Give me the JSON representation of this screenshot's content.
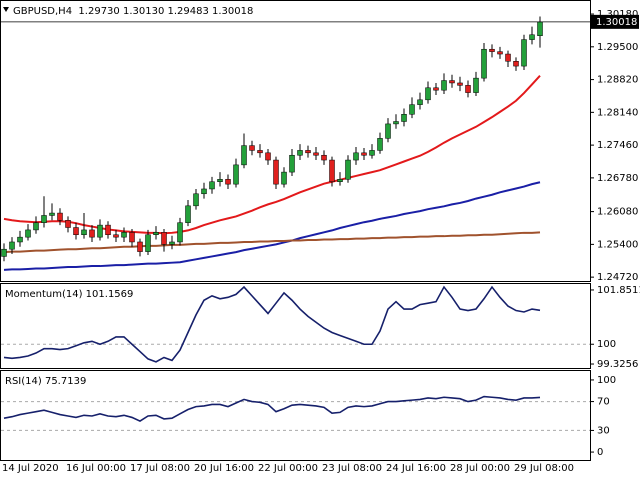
{
  "chart_data": [
    {
      "type": "candlestick",
      "title": "GBPUSD,H4  1.29730 1.30130 1.29483 1.30018",
      "categories": [
        "14 Jul 2020",
        null,
        null,
        null,
        null,
        null,
        null,
        null,
        "16 Jul 00:00",
        null,
        null,
        null,
        null,
        null,
        null,
        null,
        "17 Jul 08:00",
        null,
        null,
        null,
        null,
        null,
        null,
        null,
        "20 Jul 16:00",
        null,
        null,
        null,
        null,
        null,
        null,
        null,
        "22 Jul 00:00",
        null,
        null,
        null,
        null,
        null,
        null,
        null,
        "23 Jul 08:00",
        null,
        null,
        null,
        null,
        null,
        null,
        null,
        "24 Jul 16:00",
        null,
        null,
        null,
        null,
        null,
        null,
        null,
        "28 Jul 00:00",
        null,
        null,
        null,
        null,
        null,
        null,
        null,
        "29 Jul 08:00",
        null,
        null,
        null
      ],
      "open": [
        1.2515,
        1.253,
        1.2545,
        1.2555,
        1.257,
        1.2585,
        1.26,
        1.2605,
        1.259,
        1.2575,
        1.256,
        1.257,
        1.2555,
        1.258,
        1.256,
        1.2555,
        1.2565,
        1.2545,
        1.2525,
        1.256,
        1.2565,
        1.254,
        1.2545,
        1.2585,
        1.262,
        1.2645,
        1.2655,
        1.267,
        1.2675,
        1.2665,
        1.2705,
        1.2745,
        1.2735,
        1.273,
        1.2715,
        1.2665,
        1.269,
        1.2725,
        1.2735,
        1.273,
        1.2725,
        1.2715,
        1.267,
        1.2675,
        1.2715,
        1.273,
        1.2725,
        1.2735,
        1.276,
        1.279,
        1.2795,
        1.281,
        1.283,
        1.284,
        1.2865,
        1.286,
        1.288,
        1.2875,
        1.287,
        1.2855,
        1.2885,
        1.2945,
        1.294,
        1.2935,
        1.292,
        1.291,
        1.2965,
        1.2973
      ],
      "high": [
        1.2542,
        1.2555,
        1.2568,
        1.2582,
        1.2598,
        1.264,
        1.2625,
        1.2615,
        1.2598,
        1.2585,
        1.2605,
        1.258,
        1.2592,
        1.2588,
        1.257,
        1.2575,
        1.2572,
        1.2552,
        1.257,
        1.2578,
        1.2572,
        1.2558,
        1.2595,
        1.2632,
        1.2655,
        1.2668,
        1.268,
        1.269,
        1.2685,
        1.2718,
        1.277,
        1.2755,
        1.2748,
        1.2738,
        1.2722,
        1.27,
        1.2738,
        1.2748,
        1.2745,
        1.2742,
        1.2735,
        1.2722,
        1.269,
        1.2725,
        1.2742,
        1.274,
        1.2748,
        1.2772,
        1.2802,
        1.281,
        1.2822,
        1.2845,
        1.2855,
        1.2878,
        1.2875,
        1.2895,
        1.2892,
        1.2888,
        1.288,
        1.2898,
        1.2958,
        1.2955,
        1.295,
        1.2942,
        1.2928,
        1.2975,
        1.2992,
        1.3013
      ],
      "low": [
        1.2505,
        1.252,
        1.2535,
        1.2548,
        1.2562,
        1.2575,
        1.259,
        1.258,
        1.2565,
        1.255,
        1.2552,
        1.2545,
        1.2548,
        1.2552,
        1.2545,
        1.2545,
        1.2535,
        1.2515,
        1.2518,
        1.255,
        1.2525,
        1.253,
        1.2538,
        1.2578,
        1.2612,
        1.2635,
        1.2645,
        1.266,
        1.2655,
        1.2658,
        1.2698,
        1.2725,
        1.272,
        1.2705,
        1.2655,
        1.2658,
        1.2682,
        1.2715,
        1.272,
        1.2715,
        1.2705,
        1.266,
        1.2662,
        1.2668,
        1.2705,
        1.2715,
        1.2718,
        1.2728,
        1.2752,
        1.278,
        1.2785,
        1.2802,
        1.282,
        1.2832,
        1.285,
        1.2852,
        1.2865,
        1.2858,
        1.2845,
        1.2848,
        1.2878,
        1.2928,
        1.2925,
        1.2908,
        1.29,
        1.2902,
        1.2955,
        1.29483
      ],
      "close": [
        1.253,
        1.2545,
        1.2555,
        1.257,
        1.2585,
        1.26,
        1.2605,
        1.259,
        1.2575,
        1.256,
        1.257,
        1.2555,
        1.258,
        1.256,
        1.2555,
        1.2565,
        1.2545,
        1.2525,
        1.256,
        1.2565,
        1.254,
        1.2545,
        1.2585,
        1.262,
        1.2645,
        1.2655,
        1.267,
        1.2675,
        1.2665,
        1.2705,
        1.2745,
        1.2735,
        1.273,
        1.2715,
        1.2665,
        1.269,
        1.2725,
        1.2735,
        1.273,
        1.2725,
        1.2715,
        1.267,
        1.2675,
        1.2715,
        1.273,
        1.2725,
        1.2735,
        1.276,
        1.279,
        1.2795,
        1.281,
        1.283,
        1.284,
        1.2865,
        1.286,
        1.288,
        1.2875,
        1.287,
        1.2855,
        1.2885,
        1.2945,
        1.294,
        1.2935,
        1.292,
        1.291,
        1.2965,
        1.2975,
        1.30018
      ],
      "up_color": "#23a03a",
      "down_color": "#e0201e",
      "series": [
        {
          "color": "#e3191b",
          "values": [
            1.2593,
            1.259,
            1.2588,
            1.2587,
            1.2586,
            1.2587,
            1.2588,
            1.2588,
            1.2587,
            1.2584,
            1.258,
            1.2577,
            1.2574,
            1.2571,
            1.2569,
            1.2567,
            1.2566,
            1.2565,
            1.2564,
            1.2564,
            1.2563,
            1.2564,
            1.2566,
            1.2569,
            1.2574,
            1.258,
            1.2585,
            1.259,
            1.2594,
            1.2598,
            1.2604,
            1.261,
            1.2617,
            1.2623,
            1.2628,
            1.2634,
            1.2641,
            1.2648,
            1.2654,
            1.266,
            1.2666,
            1.267,
            1.2674,
            1.2678,
            1.2682,
            1.2686,
            1.269,
            1.2694,
            1.27,
            1.2706,
            1.2712,
            1.2718,
            1.2724,
            1.2732,
            1.2741,
            1.2751,
            1.276,
            1.2768,
            1.2776,
            1.2784,
            1.2794,
            1.2804,
            1.2815,
            1.2826,
            1.2838,
            1.2854,
            1.2872,
            1.289
          ]
        },
        {
          "color": "#1a1fa6",
          "values": [
            1.2487,
            1.2488,
            1.2488,
            1.2489,
            1.249,
            1.249,
            1.2491,
            1.2492,
            1.2493,
            1.2493,
            1.2494,
            1.2495,
            1.2495,
            1.2496,
            1.2497,
            1.2497,
            1.2498,
            1.2499,
            1.25,
            1.25,
            1.2501,
            1.2502,
            1.2503,
            1.2506,
            1.2509,
            1.2512,
            1.2515,
            1.2518,
            1.2521,
            1.2524,
            1.2528,
            1.2531,
            1.2534,
            1.2537,
            1.254,
            1.2544,
            1.2548,
            1.2553,
            1.2557,
            1.2561,
            1.2565,
            1.2569,
            1.2574,
            1.2578,
            1.2582,
            1.2586,
            1.2589,
            1.2593,
            1.2596,
            1.2599,
            1.2603,
            1.2606,
            1.2609,
            1.2613,
            1.2616,
            1.2619,
            1.2623,
            1.2626,
            1.263,
            1.2635,
            1.2639,
            1.2643,
            1.2648,
            1.2652,
            1.2656,
            1.266,
            1.2665,
            1.2669
          ]
        },
        {
          "color": "#a0522d",
          "values": [
            1.2524,
            1.2525,
            1.2525,
            1.2526,
            1.2527,
            1.2527,
            1.2528,
            1.2529,
            1.253,
            1.253,
            1.2531,
            1.2532,
            1.2532,
            1.2533,
            1.2534,
            1.2535,
            1.2535,
            1.2536,
            1.2537,
            1.2537,
            1.2538,
            1.2539,
            1.2539,
            1.254,
            1.2541,
            1.2541,
            1.2542,
            1.2543,
            1.2543,
            1.2544,
            1.2545,
            1.2545,
            1.2546,
            1.2546,
            1.2547,
            1.2547,
            1.2548,
            1.2548,
            1.2549,
            1.2549,
            1.255,
            1.255,
            1.2551,
            1.2551,
            1.2552,
            1.2552,
            1.2553,
            1.2553,
            1.2554,
            1.2554,
            1.2555,
            1.2555,
            1.2556,
            1.2556,
            1.2557,
            1.2557,
            1.2558,
            1.2558,
            1.2559,
            1.2559,
            1.256,
            1.256,
            1.2561,
            1.2562,
            1.2563,
            1.2564,
            1.2564,
            1.2565
          ]
        }
      ],
      "current_price": {
        "value": 1.30018,
        "label": "1.30018"
      },
      "ylim": [
        1.2464,
        1.3043
      ],
      "yticks": [
        {
          "value": 1.3018,
          "label": "1.30180"
        },
        {
          "value": 1.295,
          "label": "1.29500"
        },
        {
          "value": 1.2882,
          "label": "1.28820"
        },
        {
          "value": 1.2814,
          "label": "1.28140"
        },
        {
          "value": 1.2746,
          "label": "1.27460"
        },
        {
          "value": 1.2678,
          "label": "1.26780"
        },
        {
          "value": 1.2608,
          "label": "1.26080"
        },
        {
          "value": 1.254,
          "label": "1.25400"
        },
        {
          "value": 1.2472,
          "label": "1.24720"
        }
      ]
    },
    {
      "type": "line",
      "title": "Momentum(14) 101.1569",
      "color": "#16206b",
      "values": [
        99.55,
        99.52,
        99.55,
        99.6,
        99.7,
        99.85,
        99.85,
        99.82,
        99.85,
        99.95,
        100.05,
        100.1,
        100.0,
        100.1,
        100.25,
        100.25,
        100.0,
        99.75,
        99.5,
        99.4,
        99.55,
        99.45,
        99.8,
        100.4,
        101.0,
        101.5,
        101.65,
        101.55,
        101.6,
        101.7,
        101.95,
        101.65,
        101.35,
        101.05,
        101.4,
        101.75,
        101.5,
        101.2,
        100.95,
        100.75,
        100.55,
        100.4,
        100.3,
        100.2,
        100.1,
        100.0,
        100.0,
        100.45,
        101.2,
        101.45,
        101.2,
        101.2,
        101.35,
        101.4,
        101.45,
        101.95,
        101.6,
        101.2,
        101.15,
        101.2,
        101.55,
        101.95,
        101.6,
        101.3,
        101.15,
        101.1,
        101.2,
        101.1569
      ],
      "ylim": [
        99.19,
        102.02
      ],
      "yticks": [
        101.8511,
        100,
        99.3256
      ],
      "levels": [
        100
      ]
    },
    {
      "type": "line",
      "title": "RSI(14) 75.7139",
      "color": "#16206b",
      "values": [
        47,
        49,
        52,
        54,
        56,
        58,
        55,
        52,
        50,
        48,
        51,
        50,
        53,
        50,
        49,
        51,
        48,
        43,
        50,
        51,
        46,
        47,
        53,
        59,
        63,
        64,
        66,
        66,
        63,
        68,
        73,
        70,
        69,
        66,
        56,
        60,
        65,
        66,
        65,
        64,
        62,
        54,
        55,
        62,
        64,
        63,
        64,
        67,
        70,
        70,
        71,
        72,
        73,
        75,
        74,
        76,
        75,
        74,
        70,
        72,
        77,
        76,
        75,
        73,
        72,
        75,
        75,
        75.7139
      ],
      "ylim": [
        -11,
        111
      ],
      "yticks": [
        100,
        70,
        30,
        0
      ],
      "levels": [
        70,
        30
      ]
    }
  ]
}
